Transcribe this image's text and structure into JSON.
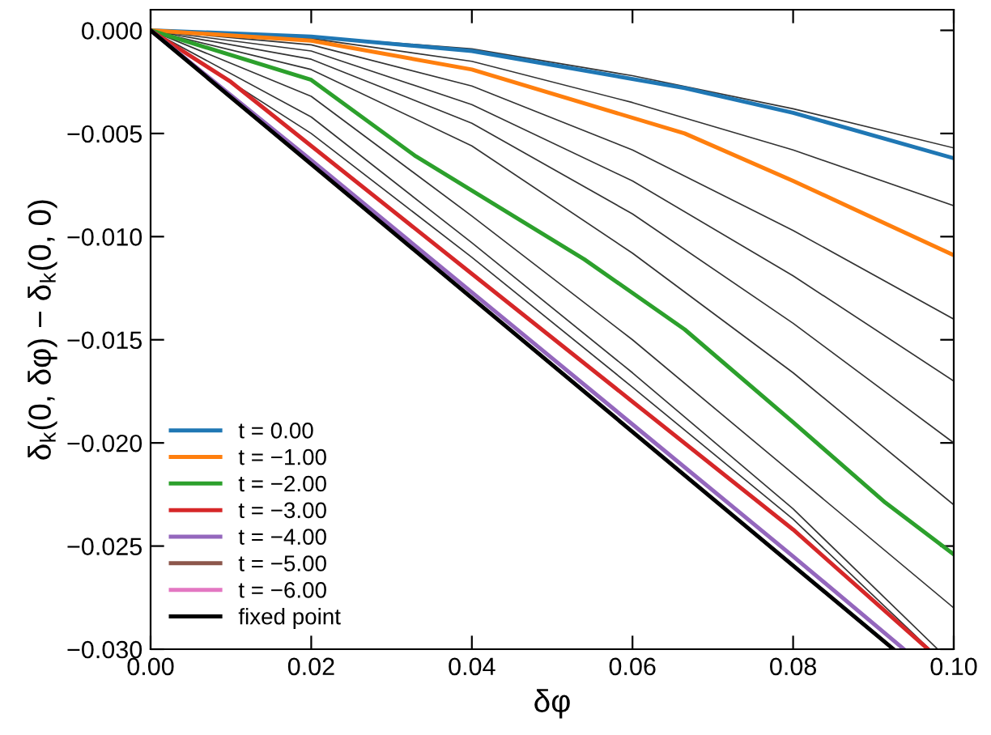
{
  "chart_data": {
    "type": "line",
    "xlabel": "δφ",
    "ylabel": "δ$_{k}$(0, δφ) − δ$_{k}$(0, 0)",
    "xlim": [
      0.0,
      0.1
    ],
    "xticks": [
      {
        "value": 0.0,
        "label": "0.00"
      },
      0.02,
      0.04,
      0.06,
      0.08,
      {
        "value": 0.1,
        "label": "0.10"
      }
    ],
    "ylim": [
      -0.03,
      0.001
    ],
    "yticks": [
      {
        "value": 0.0,
        "label": "0.000"
      },
      {
        "value": -0.005,
        "label": "−0.005"
      },
      {
        "value": -0.01,
        "label": "−0.010"
      },
      {
        "value": -0.015,
        "label": "−0.015"
      },
      {
        "value": -0.02,
        "label": "−0.020"
      },
      {
        "value": -0.025,
        "label": "−0.025"
      },
      {
        "value": -0.03,
        "label": "−0.030"
      }
    ],
    "grid": false,
    "legend": "bottom left",
    "marker": "none",
    "line_style": "solid",
    "series": [
      {
        "color": "#333333",
        "x": [
          0,
          0.02,
          0.04,
          0.06,
          0.08,
          0.1
        ],
        "values": [
          0,
          -0.0003,
          -0.0009,
          -0.0022,
          -0.0038,
          -0.0057
        ]
      },
      {
        "color": "#333333",
        "x": [
          0,
          0.02,
          0.04,
          0.06,
          0.08,
          0.1
        ],
        "values": [
          0,
          -0.0004,
          -0.0015,
          -0.0035,
          -0.0058,
          -0.0085
        ]
      },
      {
        "color": "#333333",
        "x": [
          0,
          0.02,
          0.04,
          0.06,
          0.08,
          0.1
        ],
        "values": [
          0,
          -0.0007,
          -0.0027,
          -0.0058,
          -0.0097,
          -0.014
        ]
      },
      {
        "color": "#333333",
        "x": [
          0,
          0.02,
          0.04,
          0.06,
          0.08,
          0.1
        ],
        "values": [
          0,
          -0.001,
          -0.0036,
          -0.0073,
          -0.0119,
          -0.017
        ]
      },
      {
        "color": "#333333",
        "x": [
          0,
          0.02,
          0.04,
          0.06,
          0.08,
          0.1
        ],
        "values": [
          0,
          -0.0014,
          -0.0045,
          -0.0089,
          -0.0142,
          -0.02
        ]
      },
      {
        "color": "#333333",
        "x": [
          0,
          0.02,
          0.04,
          0.06,
          0.08,
          0.1
        ],
        "values": [
          0,
          -0.0019,
          -0.0056,
          -0.0108,
          -0.0166,
          -0.023
        ]
      },
      {
        "color": "#333333",
        "x": [
          0,
          0.02,
          0.04,
          0.06,
          0.08,
          0.1
        ],
        "values": [
          0,
          -0.0032,
          -0.009,
          -0.015,
          -0.0215,
          -0.028
        ]
      },
      {
        "color": "#333333",
        "x": [
          0,
          0.02,
          0.04,
          0.06,
          0.08,
          0.098
        ],
        "values": [
          0,
          -0.0042,
          -0.0103,
          -0.0166,
          -0.0232,
          -0.03
        ]
      },
      {
        "color": "#333333",
        "x": [
          0,
          0.02,
          0.04,
          0.06,
          0.08,
          0.097
        ],
        "values": [
          0,
          -0.005,
          -0.011,
          -0.0173,
          -0.0237,
          -0.03
        ]
      },
      {
        "name": "t = 0.00",
        "color": "#1f77b4",
        "x": [
          0,
          0.02,
          0.04,
          0.0665,
          0.08,
          0.1
        ],
        "values": [
          0,
          -0.0003,
          -0.001,
          -0.0028,
          -0.004,
          -0.0062
        ]
      },
      {
        "name": "t = −1.00",
        "color": "#ff7f0e",
        "x": [
          0,
          0.02,
          0.04,
          0.0665,
          0.08,
          0.1
        ],
        "values": [
          0,
          -0.0005,
          -0.0019,
          -0.005,
          -0.0073,
          -0.0109
        ]
      },
      {
        "name": "t = −2.00",
        "color": "#2ca02c",
        "x": [
          0,
          0.02,
          0.033,
          0.054,
          0.0665,
          0.08,
          0.0915,
          0.1
        ],
        "values": [
          0,
          -0.0024,
          -0.0061,
          -0.0111,
          -0.0145,
          -0.019,
          -0.0229,
          -0.0254
        ]
      },
      {
        "name": "t = −3.00",
        "color": "#d62728",
        "x": [
          0,
          0.01,
          0.02,
          0.04,
          0.06,
          0.08,
          0.0968
        ],
        "values": [
          0,
          -0.0025,
          -0.0056,
          -0.0118,
          -0.018,
          -0.0242,
          -0.03
        ]
      },
      {
        "name": "t = −4.00",
        "color": "#9467bd",
        "x": [
          0,
          0.02,
          0.04,
          0.06,
          0.08,
          0.0938
        ],
        "values": [
          0,
          -0.0063,
          -0.0127,
          -0.0191,
          -0.0255,
          -0.03
        ]
      },
      {
        "name": "t = −5.00",
        "color": "#8c564b"
      },
      {
        "name": "t = −6.00",
        "color": "#e377c2"
      },
      {
        "name": "fixed point",
        "color": "#000000",
        "x": [
          0,
          0.0925
        ],
        "values": [
          0,
          -0.03
        ]
      }
    ]
  }
}
